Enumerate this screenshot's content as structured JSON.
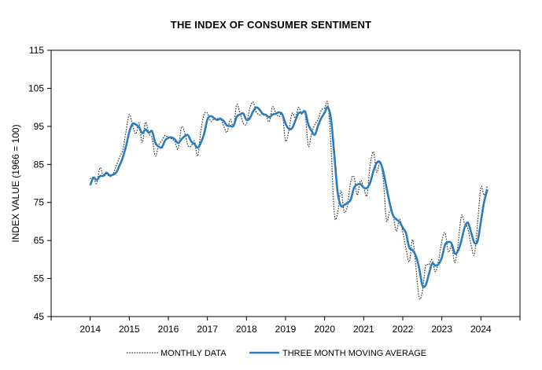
{
  "chart_data": {
    "type": "line",
    "title": "THE INDEX OF CONSUMER SENTIMENT",
    "xlabel": "",
    "ylabel": "INDEX VALUE (1966 = 100)",
    "ylim": [
      45,
      115
    ],
    "yticks": [
      45,
      55,
      65,
      75,
      85,
      95,
      105,
      115
    ],
    "xlim": [
      2013.0,
      2025.0
    ],
    "xticks": [
      2014,
      2015,
      2016,
      2017,
      2018,
      2019,
      2020,
      2021,
      2022,
      2023,
      2024
    ],
    "grid": false,
    "legend_position": "bottom",
    "colors": {
      "monthly": "#333333",
      "moving_average": "#2a7bbf"
    },
    "series": [
      {
        "name": "MONTHLY DATA",
        "style": "dotted",
        "x": [
          2014.0,
          2014.083,
          2014.167,
          2014.25,
          2014.333,
          2014.417,
          2014.5,
          2014.583,
          2014.667,
          2014.75,
          2014.833,
          2014.917,
          2015.0,
          2015.083,
          2015.167,
          2015.25,
          2015.333,
          2015.417,
          2015.5,
          2015.583,
          2015.667,
          2015.75,
          2015.833,
          2015.917,
          2016.0,
          2016.083,
          2016.167,
          2016.25,
          2016.333,
          2016.417,
          2016.5,
          2016.583,
          2016.667,
          2016.75,
          2016.833,
          2016.917,
          2017.0,
          2017.083,
          2017.167,
          2017.25,
          2017.333,
          2017.417,
          2017.5,
          2017.583,
          2017.667,
          2017.75,
          2017.833,
          2017.917,
          2018.0,
          2018.083,
          2018.167,
          2018.25,
          2018.333,
          2018.417,
          2018.5,
          2018.583,
          2018.667,
          2018.75,
          2018.833,
          2018.917,
          2019.0,
          2019.083,
          2019.167,
          2019.25,
          2019.333,
          2019.417,
          2019.5,
          2019.583,
          2019.667,
          2019.75,
          2019.833,
          2019.917,
          2020.0,
          2020.083,
          2020.167,
          2020.25,
          2020.333,
          2020.417,
          2020.5,
          2020.583,
          2020.667,
          2020.75,
          2020.833,
          2020.917,
          2021.0,
          2021.083,
          2021.167,
          2021.25,
          2021.333,
          2021.417,
          2021.5,
          2021.583,
          2021.667,
          2021.75,
          2021.833,
          2021.917,
          2022.0,
          2022.083,
          2022.167,
          2022.25,
          2022.333,
          2022.417,
          2022.5,
          2022.583,
          2022.667,
          2022.75,
          2022.833,
          2022.917,
          2023.0,
          2023.083,
          2023.167,
          2023.25,
          2023.333,
          2023.417,
          2023.5,
          2023.583,
          2023.667,
          2023.75,
          2023.833,
          2023.917,
          2024.0,
          2024.083,
          2024.167
        ],
        "values": [
          81.2,
          81.6,
          80.0,
          84.1,
          81.9,
          82.5,
          81.8,
          82.5,
          84.6,
          86.9,
          88.8,
          93.6,
          98.1,
          95.4,
          93.0,
          95.9,
          90.7,
          96.1,
          93.1,
          91.9,
          87.2,
          90.0,
          91.3,
          92.6,
          92.0,
          91.7,
          91.0,
          89.0,
          94.7,
          93.5,
          90.0,
          89.8,
          91.2,
          87.2,
          93.8,
          98.2,
          98.5,
          96.3,
          96.9,
          97.0,
          97.1,
          95.1,
          93.4,
          96.8,
          95.1,
          100.7,
          98.5,
          95.9,
          95.7,
          99.7,
          101.4,
          98.8,
          98.0,
          98.2,
          97.9,
          96.2,
          100.1,
          98.6,
          97.5,
          98.3,
          91.2,
          93.8,
          98.4,
          97.2,
          100.0,
          98.2,
          98.4,
          89.8,
          93.2,
          95.5,
          96.8,
          99.3,
          99.8,
          101.0,
          89.1,
          71.8,
          72.3,
          78.1,
          72.5,
          74.1,
          80.4,
          81.8,
          76.9,
          80.7,
          79.0,
          76.8,
          84.9,
          88.3,
          82.9,
          85.5,
          81.2,
          70.3,
          72.8,
          71.7,
          67.4,
          70.6,
          67.2,
          62.8,
          59.4,
          65.2,
          58.4,
          50.0,
          51.5,
          58.2,
          58.6,
          59.9,
          56.8,
          59.7,
          64.9,
          67.0,
          62.0,
          63.5,
          59.2,
          64.2,
          71.5,
          69.5,
          68.1,
          63.8,
          61.3,
          69.7,
          79.0,
          76.9,
          79.4
        ]
      },
      {
        "name": "THREE MONTH MOVING AVERAGE",
        "style": "solid",
        "x": [
          2014.0,
          2014.083,
          2014.167,
          2014.25,
          2014.333,
          2014.417,
          2014.5,
          2014.583,
          2014.667,
          2014.75,
          2014.833,
          2014.917,
          2015.0,
          2015.083,
          2015.167,
          2015.25,
          2015.333,
          2015.417,
          2015.5,
          2015.583,
          2015.667,
          2015.75,
          2015.833,
          2015.917,
          2016.0,
          2016.083,
          2016.167,
          2016.25,
          2016.333,
          2016.417,
          2016.5,
          2016.583,
          2016.667,
          2016.75,
          2016.833,
          2016.917,
          2017.0,
          2017.083,
          2017.167,
          2017.25,
          2017.333,
          2017.417,
          2017.5,
          2017.583,
          2017.667,
          2017.75,
          2017.833,
          2017.917,
          2018.0,
          2018.083,
          2018.167,
          2018.25,
          2018.333,
          2018.417,
          2018.5,
          2018.583,
          2018.667,
          2018.75,
          2018.833,
          2018.917,
          2019.0,
          2019.083,
          2019.167,
          2019.25,
          2019.333,
          2019.417,
          2019.5,
          2019.583,
          2019.667,
          2019.75,
          2019.833,
          2019.917,
          2020.0,
          2020.083,
          2020.167,
          2020.25,
          2020.333,
          2020.417,
          2020.5,
          2020.583,
          2020.667,
          2020.75,
          2020.833,
          2020.917,
          2021.0,
          2021.083,
          2021.167,
          2021.25,
          2021.333,
          2021.417,
          2021.5,
          2021.583,
          2021.667,
          2021.75,
          2021.833,
          2021.917,
          2022.0,
          2022.083,
          2022.167,
          2022.25,
          2022.333,
          2022.417,
          2022.5,
          2022.583,
          2022.667,
          2022.75,
          2022.833,
          2022.917,
          2023.0,
          2023.083,
          2023.167,
          2023.25,
          2023.333,
          2023.417,
          2023.5,
          2023.583,
          2023.667,
          2023.75,
          2023.833,
          2023.917,
          2024.0,
          2024.083,
          2024.167
        ],
        "values": [
          79.5,
          81.5,
          80.9,
          81.9,
          82.0,
          82.8,
          82.1,
          82.3,
          82.9,
          84.7,
          86.8,
          89.8,
          93.5,
          95.7,
          95.5,
          94.8,
          93.2,
          94.2,
          93.3,
          93.7,
          90.7,
          89.7,
          89.5,
          91.3,
          92.0,
          92.1,
          91.6,
          90.6,
          91.6,
          92.4,
          92.7,
          91.1,
          90.3,
          89.4,
          90.7,
          93.1,
          96.8,
          97.7,
          97.2,
          96.7,
          97.0,
          96.4,
          95.2,
          95.1,
          95.1,
          97.5,
          98.1,
          98.4,
          96.7,
          97.1,
          98.9,
          100.0,
          99.4,
          98.3,
          98.0,
          97.4,
          98.1,
          98.3,
          98.7,
          98.1,
          95.7,
          94.4,
          94.5,
          96.5,
          98.5,
          98.5,
          98.9,
          95.5,
          93.8,
          92.8,
          95.2,
          97.2,
          98.6,
          100.0,
          96.6,
          87.3,
          77.7,
          74.1,
          74.3,
          74.9,
          75.7,
          78.8,
          79.7,
          79.8,
          78.9,
          78.8,
          80.2,
          83.3,
          85.4,
          85.6,
          83.2,
          79.0,
          74.8,
          71.6,
          70.6,
          69.9,
          68.4,
          66.9,
          63.1,
          62.5,
          61.0,
          57.9,
          53.3,
          53.2,
          56.1,
          58.9,
          58.4,
          58.8,
          60.5,
          63.9,
          64.6,
          64.2,
          61.6,
          62.3,
          65.0,
          68.4,
          69.7,
          67.1,
          64.4,
          64.9,
          70.0,
          75.2,
          78.4
        ]
      }
    ]
  }
}
